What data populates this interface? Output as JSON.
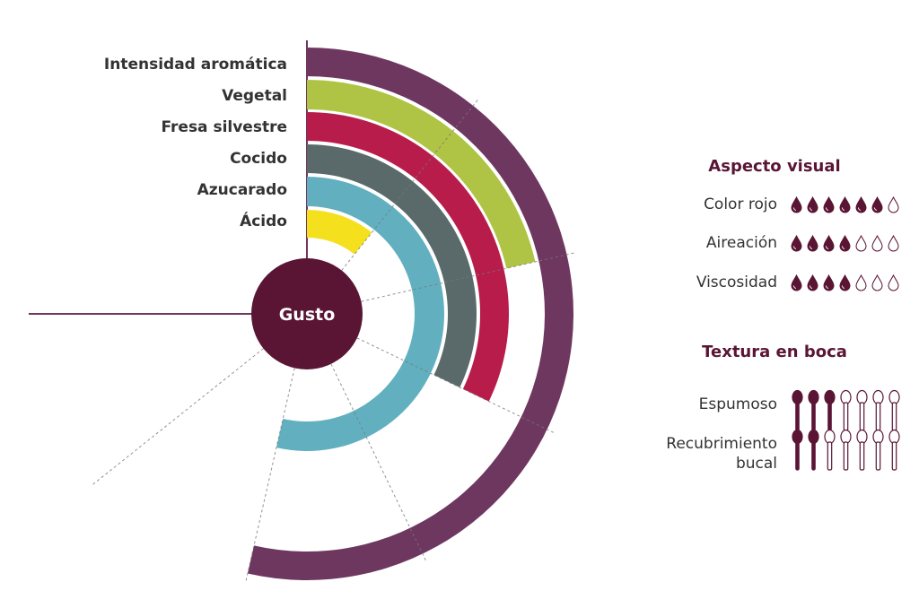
{
  "chart_data": {
    "type": "radial-bar",
    "center_label": "Gusto",
    "scale_max": 7,
    "sweep_degrees": 270,
    "grid": true,
    "series": [
      {
        "name": "Intensidad aromática",
        "value": 5,
        "color": "#6e3760"
      },
      {
        "name": "Vegetal",
        "value": 2,
        "color": "#afc445"
      },
      {
        "name": "Fresa silvestre",
        "value": 3,
        "color": "#b81c4b"
      },
      {
        "name": "Cocido",
        "value": 3,
        "color": "#5a6a6a"
      },
      {
        "name": "Azucarado",
        "value": 5,
        "color": "#62b0bf"
      },
      {
        "name": "Ácido",
        "value": 1,
        "color": "#f5e01e"
      }
    ]
  },
  "colors": {
    "center": "#5a1535",
    "icon": "#5a1535",
    "axis": "#6e3760"
  },
  "visual": {
    "title": "Aspecto visual",
    "icon": "drop-icon",
    "max": 7,
    "items": [
      {
        "label": "Color rojo",
        "value": 6
      },
      {
        "label": "Aireación",
        "value": 4
      },
      {
        "label": "Viscosidad",
        "value": 4
      }
    ]
  },
  "texture": {
    "title": "Textura en boca",
    "icon": "spoon-icon",
    "max": 7,
    "items": [
      {
        "label": "Espumoso",
        "value": 3
      },
      {
        "label": "Recubrimiento bucal",
        "value": 2
      }
    ]
  }
}
